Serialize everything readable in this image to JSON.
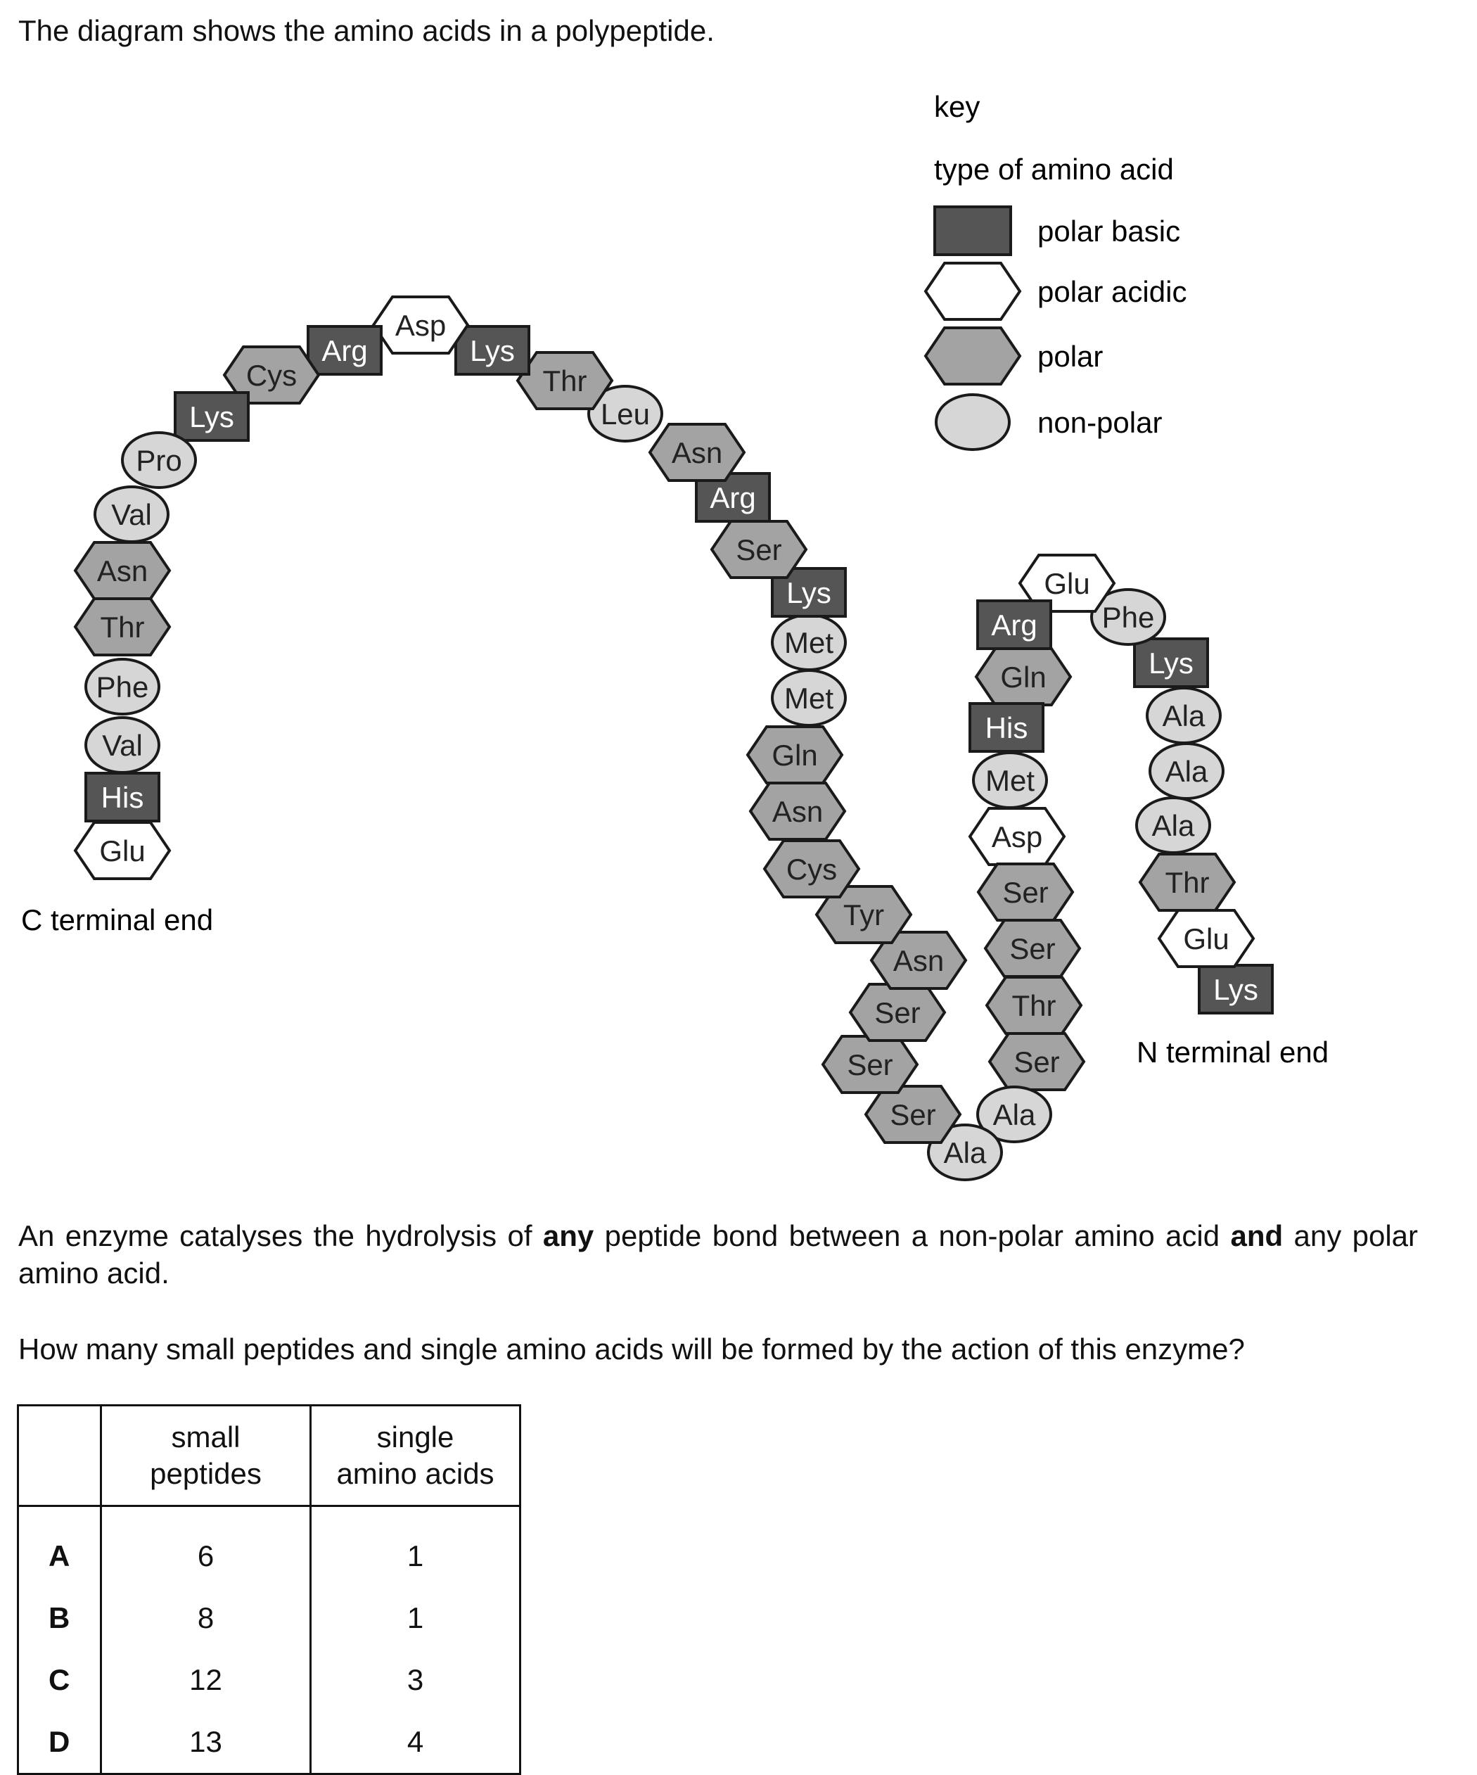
{
  "intro": "The diagram shows the amino acids in a polypeptide.",
  "key": {
    "title": "key",
    "subtitle": "type of amino acid",
    "items": [
      {
        "type": "basic",
        "label": "polar basic"
      },
      {
        "type": "acidic",
        "label": "polar acidic"
      },
      {
        "type": "polar",
        "label": "polar"
      },
      {
        "type": "nonpolar",
        "label": "non-polar"
      }
    ]
  },
  "colors": {
    "basic": "#555555",
    "acidic": "#ffffff",
    "polar": "#a3a3a3",
    "nonpolar": "#d6d6d6",
    "outline": "#1a1a1a"
  },
  "c_terminal_label": "C terminal end",
  "n_terminal_label": "N terminal end",
  "residues": [
    {
      "name": "Lys",
      "type": "basic"
    },
    {
      "name": "Glu",
      "type": "acidic"
    },
    {
      "name": "Thr",
      "type": "polar"
    },
    {
      "name": "Ala",
      "type": "nonpolar"
    },
    {
      "name": "Ala",
      "type": "nonpolar"
    },
    {
      "name": "Ala",
      "type": "nonpolar"
    },
    {
      "name": "Lys",
      "type": "basic"
    },
    {
      "name": "Phe",
      "type": "nonpolar"
    },
    {
      "name": "Glu",
      "type": "acidic"
    },
    {
      "name": "Arg",
      "type": "basic"
    },
    {
      "name": "Gln",
      "type": "polar"
    },
    {
      "name": "His",
      "type": "basic"
    },
    {
      "name": "Met",
      "type": "nonpolar"
    },
    {
      "name": "Asp",
      "type": "acidic"
    },
    {
      "name": "Ser",
      "type": "polar"
    },
    {
      "name": "Ser",
      "type": "polar"
    },
    {
      "name": "Thr",
      "type": "polar"
    },
    {
      "name": "Ser",
      "type": "polar"
    },
    {
      "name": "Ala",
      "type": "nonpolar"
    },
    {
      "name": "Ala",
      "type": "nonpolar"
    },
    {
      "name": "Ser",
      "type": "polar"
    },
    {
      "name": "Ser",
      "type": "polar"
    },
    {
      "name": "Ser",
      "type": "polar"
    },
    {
      "name": "Asn",
      "type": "polar"
    },
    {
      "name": "Tyr",
      "type": "polar"
    },
    {
      "name": "Cys",
      "type": "polar"
    },
    {
      "name": "Asn",
      "type": "polar"
    },
    {
      "name": "Gln",
      "type": "polar"
    },
    {
      "name": "Met",
      "type": "nonpolar"
    },
    {
      "name": "Met",
      "type": "nonpolar"
    },
    {
      "name": "Lys",
      "type": "basic"
    },
    {
      "name": "Ser",
      "type": "polar"
    },
    {
      "name": "Arg",
      "type": "basic"
    },
    {
      "name": "Asn",
      "type": "polar"
    },
    {
      "name": "Leu",
      "type": "nonpolar"
    },
    {
      "name": "Thr",
      "type": "polar"
    },
    {
      "name": "Lys",
      "type": "basic"
    },
    {
      "name": "Asp",
      "type": "acidic"
    },
    {
      "name": "Arg",
      "type": "basic"
    },
    {
      "name": "Cys",
      "type": "polar"
    },
    {
      "name": "Lys",
      "type": "basic"
    },
    {
      "name": "Pro",
      "type": "nonpolar"
    },
    {
      "name": "Val",
      "type": "nonpolar"
    },
    {
      "name": "Asn",
      "type": "polar"
    },
    {
      "name": "Thr",
      "type": "polar"
    },
    {
      "name": "Phe",
      "type": "nonpolar"
    },
    {
      "name": "Val",
      "type": "nonpolar"
    },
    {
      "name": "His",
      "type": "basic"
    },
    {
      "name": "Glu",
      "type": "acidic"
    }
  ],
  "paragraph": {
    "part1": "An enzyme catalyses the hydrolysis of",
    "bold1": "any",
    "part2": "peptide bond between a non-polar amino acid",
    "bold2": "and",
    "part3": "any polar amino acid."
  },
  "question": "How many small peptides and single amino acids will be formed by the action of this enzyme?",
  "table": {
    "headers": [
      "small peptides",
      "single amino acids"
    ],
    "header_lines": [
      [
        "small",
        "peptides"
      ],
      [
        "single",
        "amino acids"
      ]
    ],
    "rows": [
      {
        "option": "A",
        "small_peptides": "6",
        "single_amino_acids": "1"
      },
      {
        "option": "B",
        "small_peptides": "8",
        "single_amino_acids": "1"
      },
      {
        "option": "C",
        "small_peptides": "12",
        "single_amino_acids": "3"
      },
      {
        "option": "D",
        "small_peptides": "13",
        "single_amino_acids": "4"
      }
    ]
  }
}
